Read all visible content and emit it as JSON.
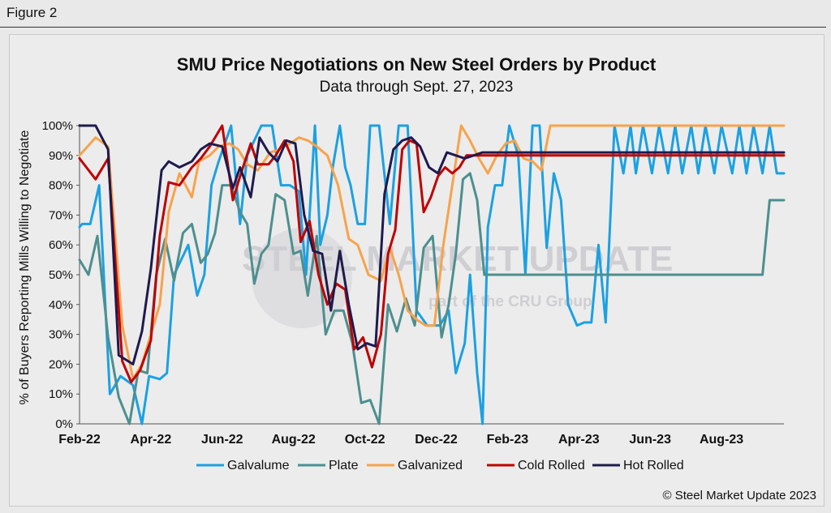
{
  "figure_label": "Figure 2",
  "watermark": {
    "main": "STEEL MARKET UPDATE",
    "sub": "part of the CRU Group"
  },
  "credit": "© Steel Market Update 2023",
  "chart_data": {
    "type": "line",
    "title": "SMU Price Negotiations on New Steel Orders by Product",
    "subtitle": "Data through Sept. 27, 2023",
    "ylabel": "% of Buyers Reporting Mills Willing to Negotiate",
    "xlabel": "",
    "ylim": [
      0,
      100
    ],
    "yticks": [
      "0%",
      "10%",
      "20%",
      "30%",
      "40%",
      "50%",
      "60%",
      "70%",
      "80%",
      "90%",
      "100%"
    ],
    "x_tick_labels": [
      "Feb-22",
      "Apr-22",
      "Jun-22",
      "Aug-22",
      "Oct-22",
      "Dec-22",
      "Feb-23",
      "Apr-23",
      "Jun-23",
      "Aug-23"
    ],
    "x_tick_index": [
      0,
      4,
      8,
      12,
      16,
      20,
      24,
      28,
      32,
      36
    ],
    "months_span": 20,
    "grid": false,
    "legend_position": "bottom",
    "series": [
      {
        "name": "Galvalume",
        "color": "#1ba1e2",
        "x": [
          0,
          0.15,
          0.6,
          1.1,
          1.7,
          2.3,
          3.0,
          3.5,
          3.9,
          4.5,
          4.9,
          5.3,
          6.1,
          6.6,
          7.0,
          7.4,
          7.8,
          8.5,
          9.0,
          9.4,
          10.2,
          10.8,
          11.3,
          11.8,
          12.3,
          12.7,
          13.2,
          13.5,
          13.9,
          14.2,
          14.6,
          14.9,
          15.2,
          15.6,
          16.0,
          16.3,
          16.8,
          17.4,
          17.9,
          18.4,
          18.9,
          19.5,
          20.2,
          20.7,
          21.1,
          21.6,
          21.9,
          22.3,
          22.6,
          22.9,
          23.3,
          23.7,
          24.1,
          24.6,
          25.0,
          25.4,
          25.8,
          26.2,
          26.6,
          27.0,
          27.4,
          27.9,
          28.3,
          28.7,
          29.1,
          29.5,
          30.0,
          30.5,
          30.9,
          31.2,
          31.6,
          32.1,
          32.5,
          33.0,
          33.4,
          33.8,
          34.3,
          34.7,
          35.1,
          35.6,
          36.0,
          36.6,
          37.0,
          37.4,
          37.8,
          38.3,
          38.7,
          39.1,
          39.5
        ],
        "y": [
          66,
          67,
          67,
          80,
          10,
          16,
          13,
          0,
          16,
          15,
          17,
          50,
          60,
          43,
          50,
          80,
          88,
          100,
          67,
          90,
          100,
          100,
          80,
          80,
          78,
          50,
          100,
          60,
          70,
          86,
          100,
          86,
          80,
          67,
          67,
          100,
          100,
          67,
          100,
          100,
          38,
          33,
          33,
          38,
          17,
          27,
          50,
          17,
          0,
          66,
          80,
          80,
          100,
          90,
          50,
          100,
          100,
          59,
          84,
          75,
          40,
          33,
          34,
          34,
          60,
          34,
          100,
          84,
          100,
          84,
          100,
          84,
          100,
          84,
          100,
          84,
          100,
          84,
          100,
          84,
          100,
          84,
          100,
          84,
          100,
          84,
          100,
          84,
          84
        ]
      },
      {
        "name": "Plate",
        "color": "#4d8f8f",
        "x": [
          0,
          0.5,
          1.0,
          1.6,
          2.2,
          2.8,
          3.3,
          3.8,
          4.3,
          4.8,
          5.3,
          5.8,
          6.3,
          6.8,
          7.2,
          7.6,
          8.0,
          8.5,
          9.0,
          9.4,
          9.8,
          10.2,
          10.6,
          11.0,
          11.5,
          12.0,
          12.4,
          12.8,
          13.3,
          13.8,
          14.3,
          14.8,
          15.3,
          15.8,
          16.3,
          16.8,
          17.3,
          17.8,
          18.3,
          18.8,
          19.3,
          19.8,
          20.3,
          20.7,
          21.1,
          21.5,
          21.9,
          22.3,
          22.7,
          23.1,
          23.5,
          23.9,
          24.3,
          24.7,
          25.1,
          25.5,
          25.9,
          26.3,
          26.7,
          27.1,
          27.5,
          27.9,
          28.3,
          28.7,
          29.1,
          29.5,
          29.9,
          30.3,
          30.7,
          31.1,
          31.5,
          31.9,
          32.3,
          32.7,
          33.1,
          33.5,
          33.9,
          34.3,
          34.7,
          35.1,
          35.5,
          35.9,
          36.3,
          36.7,
          37.1,
          37.5,
          37.9,
          38.3,
          38.7,
          39.1,
          39.5
        ],
        "y": [
          55,
          50,
          63,
          29,
          9,
          0,
          18,
          17,
          50,
          62,
          48,
          64,
          67,
          54,
          57,
          64,
          80,
          80,
          71,
          67,
          47,
          57,
          60,
          77,
          75,
          57,
          58,
          43,
          63,
          30,
          38,
          38,
          27,
          7,
          8,
          0,
          40,
          31,
          42,
          33,
          59,
          63,
          29,
          40,
          57,
          82,
          84,
          75,
          50,
          50,
          50,
          50,
          50,
          50,
          50,
          50,
          50,
          50,
          50,
          50,
          50,
          50,
          50,
          50,
          50,
          50,
          50,
          50,
          50,
          50,
          50,
          50,
          50,
          50,
          50,
          50,
          50,
          50,
          50,
          50,
          50,
          50,
          50,
          50,
          50,
          50,
          50,
          50,
          75,
          75,
          75
        ]
      },
      {
        "name": "Galvanized",
        "color": "#f7a34b",
        "x": [
          0,
          0.9,
          1.6,
          2.4,
          3.0,
          3.5,
          4.0,
          4.5,
          5.0,
          5.6,
          6.3,
          6.7,
          7.3,
          7.8,
          8.4,
          8.9,
          9.4,
          10.0,
          10.7,
          11.2,
          11.8,
          12.3,
          12.8,
          13.3,
          13.9,
          14.5,
          15.1,
          15.6,
          16.2,
          16.9,
          17.4,
          17.9,
          18.4,
          18.9,
          19.4,
          19.9,
          20.4,
          20.9,
          21.4,
          21.9,
          22.4,
          22.9,
          23.4,
          23.9,
          24.4,
          24.9,
          25.4,
          25.9,
          26.4,
          26.9,
          27.4,
          27.9,
          28.4,
          28.9,
          29.4,
          29.9,
          30.4,
          30.9,
          31.4,
          31.9,
          32.4,
          32.9,
          33.4,
          33.9,
          34.4,
          34.9,
          35.4,
          35.9,
          36.4,
          36.9,
          37.4,
          37.9,
          38.4,
          38.9,
          39.4,
          39.5
        ],
        "y": [
          90,
          96,
          93,
          33,
          15,
          20,
          30,
          40,
          71,
          84,
          76,
          88,
          90,
          93,
          94,
          92,
          87,
          85,
          91,
          92,
          94,
          96,
          95,
          93,
          90,
          80,
          62,
          60,
          50,
          48,
          59,
          50,
          38,
          35,
          33,
          33,
          60,
          80,
          100,
          95,
          89,
          84,
          90,
          94,
          95,
          89,
          88,
          85,
          100,
          100,
          100,
          100,
          100,
          100,
          100,
          100,
          100,
          100,
          100,
          100,
          100,
          100,
          100,
          100,
          100,
          100,
          100,
          100,
          100,
          100,
          100,
          100,
          100,
          100,
          100,
          100
        ],
        "y_note_unused": ""
      },
      {
        "name": "Cold Rolled",
        "color": "#c00000",
        "x": [
          0,
          0.9,
          1.6,
          2.4,
          2.9,
          3.4,
          4.0,
          4.5,
          5.0,
          5.6,
          6.3,
          6.8,
          7.3,
          8.0,
          8.6,
          9.0,
          9.6,
          10.0,
          10.6,
          11.0,
          11.5,
          12.0,
          12.4,
          12.9,
          13.4,
          13.9,
          14.4,
          14.9,
          15.4,
          15.9,
          16.4,
          16.9,
          17.3,
          17.7,
          18.1,
          18.5,
          18.9,
          19.3,
          19.7,
          20.1,
          20.5,
          20.9,
          21.3,
          21.7,
          22.1,
          22.5,
          22.9,
          23.3,
          23.7,
          24.1,
          24.5,
          24.9,
          25.3,
          25.7,
          26.1,
          26.5,
          26.9,
          27.3,
          27.7,
          28.1,
          28.5,
          28.9,
          29.3,
          29.7,
          30.1,
          30.5,
          30.9,
          31.3,
          31.7,
          32.1,
          32.5,
          32.9,
          33.3,
          33.7,
          34.1,
          34.5,
          34.9,
          35.3,
          35.7,
          36.1,
          36.5,
          36.9,
          37.3,
          37.7,
          38.1,
          38.5,
          38.9,
          39.3,
          39.5
        ],
        "y": [
          89,
          82,
          89,
          21,
          14,
          18,
          28,
          63,
          81,
          80,
          86,
          89,
          93,
          100,
          75,
          83,
          94,
          87,
          87,
          90,
          95,
          88,
          61,
          68,
          50,
          40,
          47,
          45,
          25,
          29,
          19,
          30,
          57,
          65,
          92,
          95,
          94,
          71,
          76,
          83,
          86,
          84,
          86,
          90,
          90,
          90,
          90,
          90,
          90,
          90,
          90,
          90,
          90,
          90,
          90,
          90,
          90,
          90,
          90,
          90,
          90,
          90,
          90,
          90,
          90,
          90,
          90,
          90,
          90,
          90,
          90,
          90,
          90,
          90,
          90,
          90,
          90,
          90,
          90,
          90,
          90,
          90,
          90,
          90,
          90,
          90,
          90,
          90,
          90
        ]
      },
      {
        "name": "Hot Rolled",
        "color": "#1f1a4d",
        "x": [
          0,
          0.9,
          1.6,
          2.2,
          3.0,
          3.5,
          4.0,
          4.6,
          5.0,
          5.6,
          6.3,
          6.8,
          7.3,
          8.0,
          8.6,
          9.0,
          9.6,
          10.1,
          10.6,
          11.1,
          11.6,
          12.1,
          12.6,
          13.1,
          13.6,
          14.1,
          14.6,
          15.1,
          15.6,
          16.1,
          16.6,
          17.1,
          17.6,
          18.1,
          18.6,
          19.1,
          19.6,
          20.1,
          20.6,
          21.1,
          21.6,
          22.1,
          22.6,
          23.1,
          23.6,
          24.1,
          24.6,
          25.1,
          25.6,
          26.1,
          26.6,
          27.1,
          27.6,
          28.1,
          28.6,
          29.1,
          29.6,
          30.1,
          30.6,
          31.1,
          31.6,
          32.1,
          32.6,
          33.1,
          33.6,
          34.1,
          34.6,
          35.1,
          35.6,
          36.1,
          36.6,
          37.1,
          37.6,
          38.1,
          38.6,
          39.1,
          39.5
        ],
        "y": [
          100,
          100,
          92,
          23,
          20,
          31,
          52,
          85,
          88,
          86,
          88,
          92,
          94,
          93,
          79,
          86,
          76,
          96,
          91,
          88,
          95,
          94,
          70,
          58,
          57,
          38,
          58,
          40,
          25,
          27,
          26,
          77,
          92,
          95,
          96,
          93,
          86,
          84,
          91,
          90,
          89,
          90,
          91,
          91,
          91,
          91,
          91,
          91,
          91,
          91,
          91,
          91,
          91,
          91,
          91,
          91,
          91,
          91,
          91,
          91,
          91,
          91,
          91,
          91,
          91,
          91,
          91,
          91,
          91,
          91,
          91,
          91,
          91,
          91,
          91,
          91,
          91
        ]
      }
    ],
    "series_values_note": ""
  }
}
